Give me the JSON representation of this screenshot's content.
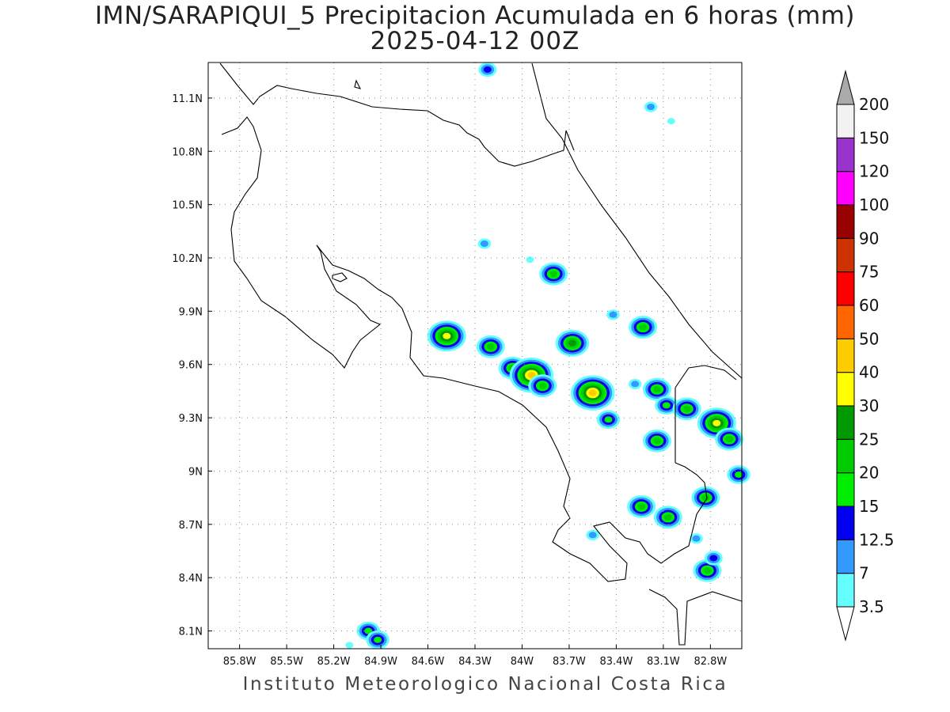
{
  "title": "IMN/SARAPIQUI_5 Precipitacion Acumulada en 6 horas (mm)",
  "subtitle": "2025-04-12 00Z",
  "footer": "Instituto Meteorologico Nacional Costa Rica",
  "map": {
    "lon_range": [
      -86.0,
      -82.6
    ],
    "lat_range": [
      8.0,
      11.3
    ],
    "lon_ticks": [
      "85.8W",
      "85.5W",
      "85.2W",
      "84.9W",
      "84.6W",
      "84.3W",
      "84W",
      "83.7W",
      "83.4W",
      "83.1W",
      "82.8W"
    ],
    "lon_tick_values": [
      -85.8,
      -85.5,
      -85.2,
      -84.9,
      -84.6,
      -84.3,
      -84.0,
      -83.7,
      -83.4,
      -83.1,
      -82.8
    ],
    "lat_ticks": [
      "11.1N",
      "10.8N",
      "10.5N",
      "10.2N",
      "9.9N",
      "9.6N",
      "9.3N",
      "9N",
      "8.7N",
      "8.4N",
      "8.1N"
    ],
    "lat_tick_values": [
      11.1,
      10.8,
      10.5,
      10.2,
      9.9,
      9.6,
      9.3,
      9.0,
      8.7,
      8.4,
      8.1
    ],
    "grid": "dotted"
  },
  "colorbar": {
    "levels": [
      "3.5",
      "7",
      "12.5",
      "15",
      "20",
      "25",
      "30",
      "40",
      "50",
      "60",
      "75",
      "90",
      "100",
      "120",
      "150",
      "200"
    ],
    "colors": [
      "#66ffff",
      "#3399ff",
      "#0000ee",
      "#00ee00",
      "#00cc00",
      "#009900",
      "#ffff00",
      "#ffcc00",
      "#ff6600",
      "#ff0000",
      "#cc3300",
      "#990000",
      "#ff00ff",
      "#9933cc",
      "#f2f2f2"
    ],
    "over_color": "#aaaaaa",
    "under_color": "#ffffff"
  },
  "precip_cells": [
    {
      "lon": -84.22,
      "lat": 11.26,
      "level": 2
    },
    {
      "lon": -83.18,
      "lat": 11.05,
      "level": 1
    },
    {
      "lon": -83.05,
      "lat": 10.97,
      "level": 0
    },
    {
      "lon": -84.24,
      "lat": 10.28,
      "level": 1
    },
    {
      "lon": -83.8,
      "lat": 10.11,
      "level": 4
    },
    {
      "lon": -83.95,
      "lat": 10.19,
      "level": 0
    },
    {
      "lon": -84.48,
      "lat": 9.76,
      "level": 6
    },
    {
      "lon": -84.2,
      "lat": 9.7,
      "level": 4
    },
    {
      "lon": -83.68,
      "lat": 9.72,
      "level": 5
    },
    {
      "lon": -83.42,
      "lat": 9.88,
      "level": 1
    },
    {
      "lon": -83.23,
      "lat": 9.81,
      "level": 4
    },
    {
      "lon": -84.06,
      "lat": 9.58,
      "level": 4
    },
    {
      "lon": -83.94,
      "lat": 9.54,
      "level": 7
    },
    {
      "lon": -83.87,
      "lat": 9.48,
      "level": 4
    },
    {
      "lon": -83.55,
      "lat": 9.44,
      "level": 7
    },
    {
      "lon": -83.45,
      "lat": 9.29,
      "level": 3
    },
    {
      "lon": -83.28,
      "lat": 9.49,
      "level": 1
    },
    {
      "lon": -83.14,
      "lat": 9.46,
      "level": 4
    },
    {
      "lon": -83.08,
      "lat": 9.37,
      "level": 3
    },
    {
      "lon": -82.95,
      "lat": 9.35,
      "level": 4
    },
    {
      "lon": -82.76,
      "lat": 9.27,
      "level": 6
    },
    {
      "lon": -82.68,
      "lat": 9.18,
      "level": 4
    },
    {
      "lon": -82.62,
      "lat": 8.98,
      "level": 3
    },
    {
      "lon": -83.14,
      "lat": 9.17,
      "level": 4
    },
    {
      "lon": -83.24,
      "lat": 8.8,
      "level": 4
    },
    {
      "lon": -83.07,
      "lat": 8.74,
      "level": 4
    },
    {
      "lon": -82.83,
      "lat": 8.85,
      "level": 4
    },
    {
      "lon": -82.82,
      "lat": 8.44,
      "level": 4
    },
    {
      "lon": -82.78,
      "lat": 8.51,
      "level": 2
    },
    {
      "lon": -82.89,
      "lat": 8.62,
      "level": 1
    },
    {
      "lon": -83.55,
      "lat": 8.64,
      "level": 1
    },
    {
      "lon": -84.98,
      "lat": 8.1,
      "level": 3
    },
    {
      "lon": -84.92,
      "lat": 8.05,
      "level": 3
    },
    {
      "lon": -85.1,
      "lat": 8.02,
      "level": 0
    }
  ]
}
